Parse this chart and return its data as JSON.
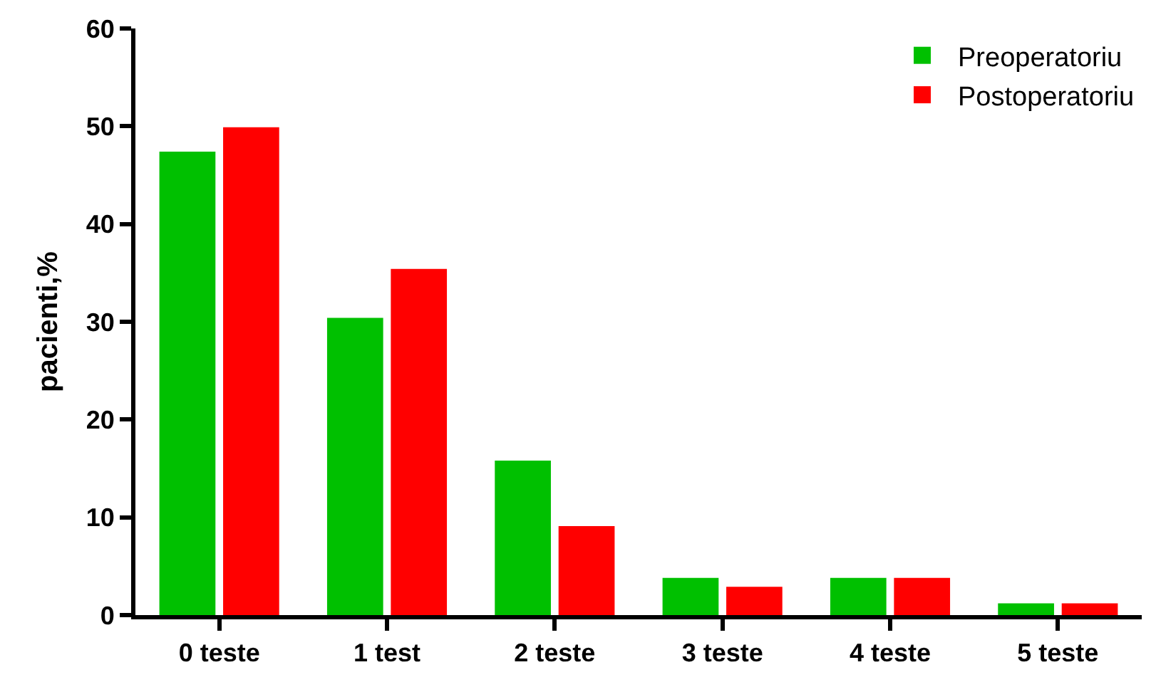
{
  "chart_data": {
    "type": "bar",
    "ylabel": "pacienti,%",
    "categories": [
      "0 teste",
      "1 test",
      "2 teste",
      "3 teste",
      "4 teste",
      "5 teste"
    ],
    "series": [
      {
        "name": "Preoperatoriu",
        "color": "#00c000",
        "values": [
          47.4,
          30.4,
          15.8,
          3.8,
          3.8,
          1.2
        ]
      },
      {
        "name": "Postoperatoriu",
        "color": "#ff0000",
        "values": [
          49.9,
          35.4,
          9.1,
          2.9,
          3.8,
          1.2
        ]
      }
    ],
    "ylim": [
      0,
      60
    ],
    "yticks": [
      0,
      10,
      20,
      30,
      40,
      50,
      60
    ],
    "legend": "top right"
  }
}
